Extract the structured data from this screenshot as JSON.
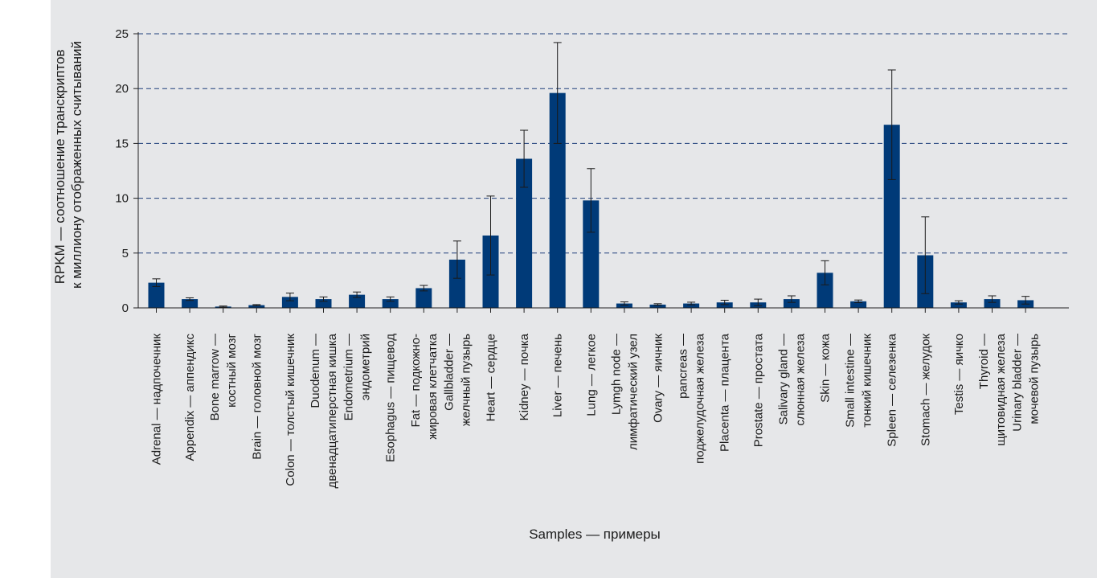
{
  "chart_data": {
    "type": "bar",
    "xlabel": "Samples — примеры",
    "ylabel_lines": [
      "RPKM — соотношение транскриптов",
      "к миллиону отображенных считываний"
    ],
    "ylim": [
      0,
      25
    ],
    "yticks": [
      "0",
      "5",
      "10",
      "15",
      "20",
      "25"
    ],
    "grid": "dashed horizontal",
    "bar_color": "#003a78",
    "grid_color": "#1f3f7a",
    "categories": [
      {
        "lines": [
          "Adrenal — надпочечник"
        ],
        "value": 2.3,
        "error": 0.35
      },
      {
        "lines": [
          "Appendix — аппендикс"
        ],
        "value": 0.8,
        "error": 0.12
      },
      {
        "lines": [
          "Bone marrow —",
          "костный мозг"
        ],
        "value": 0.12,
        "error": 0.05
      },
      {
        "lines": [
          "Brain — головной мозг"
        ],
        "value": 0.25,
        "error": 0.05
      },
      {
        "lines": [
          "Colon — толстый кишечник"
        ],
        "value": 1.0,
        "error": 0.35
      },
      {
        "lines": [
          "Duodenum —",
          "двенадцатиперстная кишка"
        ],
        "value": 0.8,
        "error": 0.2
      },
      {
        "lines": [
          "Endometrium —",
          "эндометрий"
        ],
        "value": 1.2,
        "error": 0.25
      },
      {
        "lines": [
          "Esophagus — пищевод"
        ],
        "value": 0.8,
        "error": 0.2
      },
      {
        "lines": [
          "Fat — подкожно-",
          "жировая клетчатка"
        ],
        "value": 1.8,
        "error": 0.25
      },
      {
        "lines": [
          "Gallbladder —",
          "желчный пузырь"
        ],
        "value": 4.4,
        "error": 1.7
      },
      {
        "lines": [
          "Heart — сердце"
        ],
        "value": 6.6,
        "error": 3.6
      },
      {
        "lines": [
          "Kidney — почка"
        ],
        "value": 13.6,
        "error": 2.6
      },
      {
        "lines": [
          "Liver — печень"
        ],
        "value": 19.6,
        "error": 4.6
      },
      {
        "lines": [
          "Lung — легкое"
        ],
        "value": 9.8,
        "error": 2.9
      },
      {
        "lines": [
          "Lymgh node —",
          "лимфатический узел"
        ],
        "value": 0.4,
        "error": 0.15
      },
      {
        "lines": [
          "Ovary — яичник"
        ],
        "value": 0.3,
        "error": 0.08
      },
      {
        "lines": [
          "pancreas —",
          "поджелудочная железа"
        ],
        "value": 0.4,
        "error": 0.12
      },
      {
        "lines": [
          "Placenta — плацента"
        ],
        "value": 0.5,
        "error": 0.2
      },
      {
        "lines": [
          "Prostate — простата"
        ],
        "value": 0.5,
        "error": 0.3
      },
      {
        "lines": [
          "Salivary gland —",
          "слюнная железа"
        ],
        "value": 0.8,
        "error": 0.3
      },
      {
        "lines": [
          "Skin — кожа"
        ],
        "value": 3.2,
        "error": 1.1
      },
      {
        "lines": [
          "Small intestine —",
          "тонкий кишечник"
        ],
        "value": 0.6,
        "error": 0.12
      },
      {
        "lines": [
          "Spleen — селезенка"
        ],
        "value": 16.7,
        "error": 5.0
      },
      {
        "lines": [
          "Stomach — желудок"
        ],
        "value": 4.8,
        "error": 3.5
      },
      {
        "lines": [
          "Testis — яичко"
        ],
        "value": 0.5,
        "error": 0.15
      },
      {
        "lines": [
          "Thyroid —",
          "щитовидная железа"
        ],
        "value": 0.8,
        "error": 0.3
      },
      {
        "lines": [
          "Urinary bladder —",
          "мочевой пузырь"
        ],
        "value": 0.7,
        "error": 0.35
      }
    ]
  }
}
